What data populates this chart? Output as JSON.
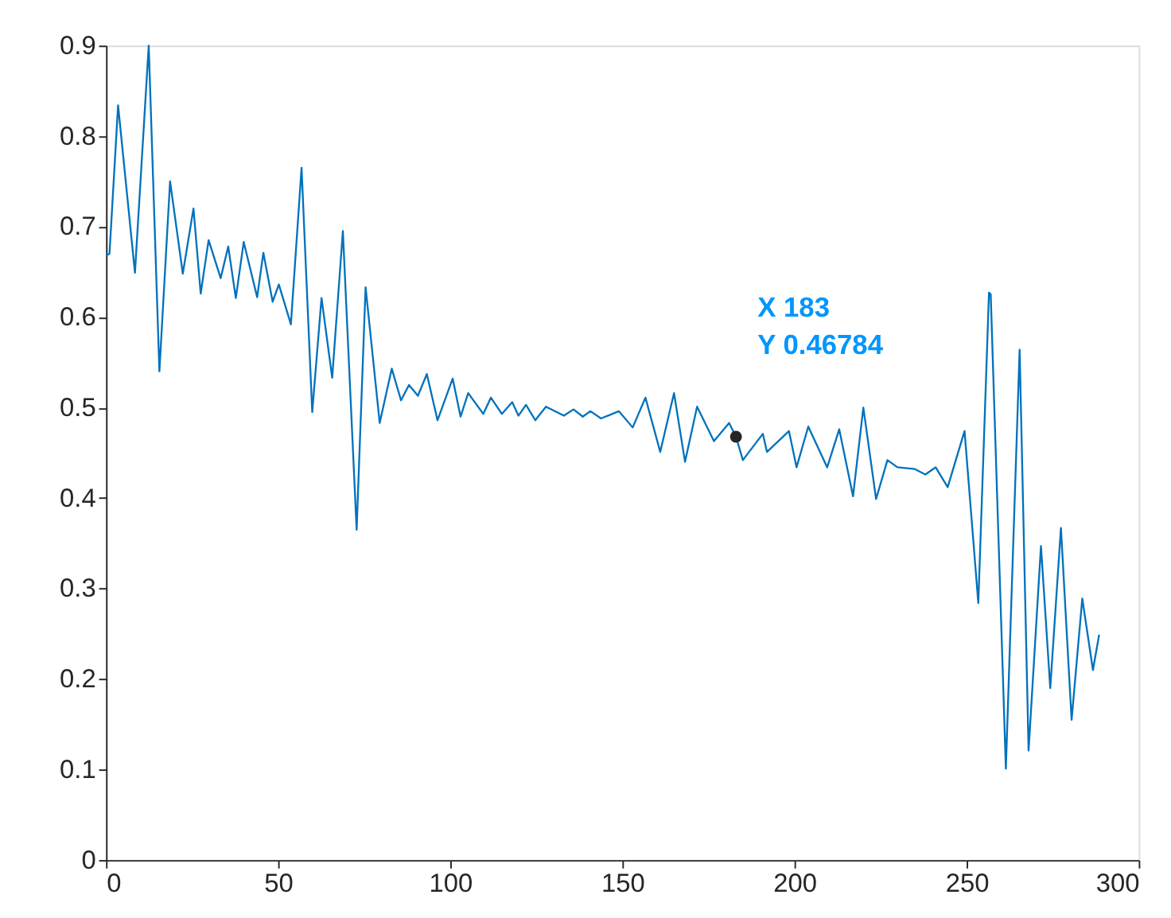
{
  "chart_data": {
    "type": "line",
    "x": [
      0,
      1,
      3.5,
      8.4,
      12.4,
      15.5,
      18.6,
      22.3,
      25.4,
      27.5,
      29.8,
      33.3,
      35.5,
      37.7,
      40,
      43.9,
      45.7,
      48.4,
      50.2,
      53.7,
      56.8,
      59.9,
      62.6,
      65.7,
      68.8,
      72.8,
      75.4,
      79.5,
      83,
      85.7,
      88,
      90.6,
      93.2,
      96.3,
      100.7,
      103,
      105.2,
      109.6,
      111.8,
      115,
      118,
      119.8,
      122,
      124.7,
      127.8,
      133,
      135.8,
      138.5,
      140.7,
      143.8,
      149,
      153,
      156.7,
      161,
      165,
      168.2,
      171.7,
      176.6,
      181,
      183,
      185,
      190.8,
      192,
      198.4,
      200.6,
      204,
      209.5,
      213,
      217,
      220,
      223.7,
      227,
      229.9,
      235,
      238,
      241,
      244.5,
      249.4,
      253.4,
      256.5,
      257,
      261.4,
      265.4,
      268,
      271.6,
      274.3,
      277.4,
      280.5,
      283.6,
      286.7,
      288.5
    ],
    "series": [
      {
        "color": "#0072bd",
        "values": [
          0.668,
          0.67,
          0.834,
          0.649,
          0.9,
          0.54,
          0.75,
          0.648,
          0.72,
          0.626,
          0.685,
          0.643,
          0.678,
          0.621,
          0.683,
          0.622,
          0.671,
          0.617,
          0.636,
          0.592,
          0.765,
          0.495,
          0.621,
          0.533,
          0.695,
          0.365,
          0.633,
          0.483,
          0.543,
          0.508,
          0.525,
          0.513,
          0.537,
          0.486,
          0.532,
          0.49,
          0.516,
          0.493,
          0.511,
          0.493,
          0.506,
          0.491,
          0.503,
          0.486,
          0.501,
          0.491,
          0.498,
          0.49,
          0.496,
          0.488,
          0.496,
          0.478,
          0.511,
          0.451,
          0.516,
          0.44,
          0.501,
          0.463,
          0.483,
          0.468,
          0.442,
          0.471,
          0.451,
          0.474,
          0.434,
          0.479,
          0.434,
          0.476,
          0.402,
          0.5,
          0.399,
          0.442,
          0.434,
          0.432,
          0.426,
          0.434,
          0.412,
          0.474,
          0.284,
          0.627,
          0.625,
          0.101,
          0.564,
          0.121,
          0.347,
          0.19,
          0.367,
          0.155,
          0.289,
          0.21,
          0.249
        ]
      }
    ],
    "xlim": [
      0,
      300
    ],
    "xticks": [
      0,
      50,
      100,
      150,
      200,
      250,
      300
    ],
    "ylim": [
      0,
      0.9
    ],
    "yticks": [
      0,
      0.1,
      0.2,
      0.3,
      0.4,
      0.5,
      0.6,
      0.7,
      0.8,
      0.9
    ],
    "grid": false,
    "marker": "none",
    "line_style": "solid",
    "annotations": [
      {
        "text": "X 183\nY 0.46784",
        "x": 183,
        "y": 0.46784
      }
    ]
  }
}
